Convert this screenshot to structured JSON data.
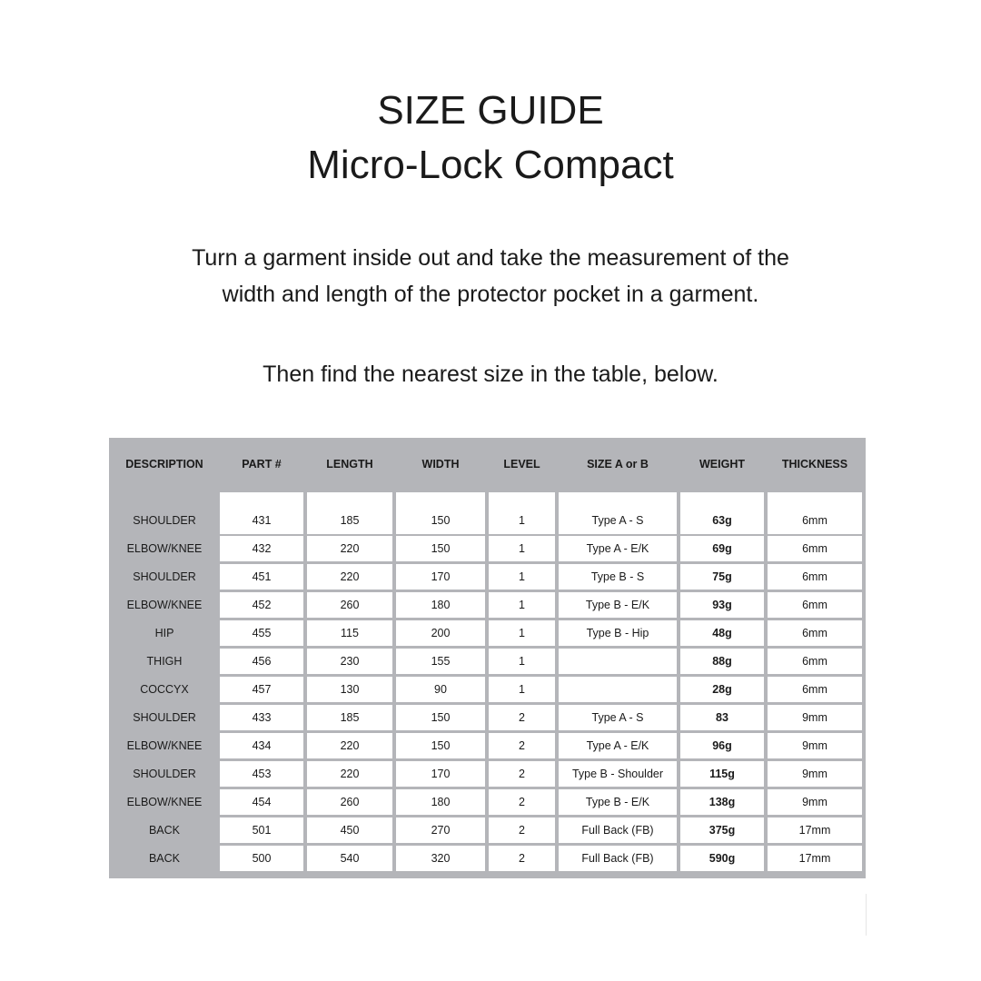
{
  "title": "SIZE GUIDE",
  "subtitle": "Micro-Lock Compact",
  "instructions": [
    "Turn a garment inside out and take the measurement of the",
    "width and length of the protector pocket in a garment.",
    "Then find the nearest size in the table, below."
  ],
  "table": {
    "headers": [
      "DESCRIPTION",
      "PART #",
      "LENGTH",
      "WIDTH",
      "LEVEL",
      "SIZE A or B",
      "WEIGHT",
      "THICKNESS"
    ],
    "rows": [
      [
        "SHOULDER",
        "431",
        "185",
        "150",
        "1",
        "Type A - S",
        "63g",
        "6mm"
      ],
      [
        "ELBOW/KNEE",
        "432",
        "220",
        "150",
        "1",
        "Type A - E/K",
        "69g",
        "6mm"
      ],
      [
        "SHOULDER",
        "451",
        "220",
        "170",
        "1",
        "Type B - S",
        "75g",
        "6mm"
      ],
      [
        "ELBOW/KNEE",
        "452",
        "260",
        "180",
        "1",
        "Type B - E/K",
        "93g",
        "6mm"
      ],
      [
        "HIP",
        "455",
        "115",
        "200",
        "1",
        "Type B - Hip",
        "48g",
        "6mm"
      ],
      [
        "THIGH",
        "456",
        "230",
        "155",
        "1",
        "",
        "88g",
        "6mm"
      ],
      [
        "COCCYX",
        "457",
        "130",
        "90",
        "1",
        "",
        "28g",
        "6mm"
      ],
      [
        "SHOULDER",
        "433",
        "185",
        "150",
        "2",
        "Type A - S",
        "83",
        "9mm"
      ],
      [
        "ELBOW/KNEE",
        "434",
        "220",
        "150",
        "2",
        "Type A - E/K",
        "96g",
        "9mm"
      ],
      [
        "SHOULDER",
        "453",
        "220",
        "170",
        "2",
        "Type B - Shoulder",
        "115g",
        "9mm"
      ],
      [
        "ELBOW/KNEE",
        "454",
        "260",
        "180",
        "2",
        "Type B - E/K",
        "138g",
        "9mm"
      ],
      [
        "BACK",
        "501",
        "450",
        "270",
        "2",
        "Full Back (FB)",
        "375g",
        "17mm"
      ],
      [
        "BACK",
        "500",
        "540",
        "320",
        "2",
        "Full Back (FB)",
        "590g",
        "17mm"
      ]
    ]
  }
}
